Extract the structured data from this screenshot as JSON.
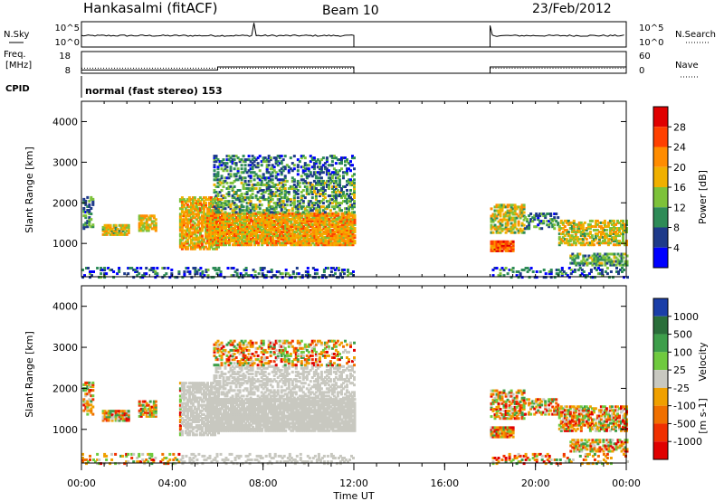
{
  "header": {
    "station": "Hankasalmi (fitACF)",
    "beam": "Beam 10",
    "date": "23/Feb/2012"
  },
  "nsky_panel": {
    "left_label": "N.Sky",
    "right_label": "N.Search",
    "left_ticks": [
      "10^5",
      "10^0"
    ],
    "right_ticks": [
      "10^5",
      "10^0"
    ]
  },
  "freq_panel": {
    "left_label_top": "Freq.",
    "left_label_bottom": "[MHz]",
    "right_label": "Nave",
    "left_ticks": [
      "18",
      "8"
    ],
    "right_ticks": [
      "60",
      "0"
    ]
  },
  "cpid": {
    "label": "CPID",
    "mode": "normal (fast stereo) 153"
  },
  "time_axis": {
    "title": "Time UT",
    "range_hours": [
      0,
      24
    ],
    "tick_labels": [
      "00:00",
      "04:00",
      "08:00",
      "12:00",
      "16:00",
      "20:00",
      "00:00"
    ],
    "tick_hours": [
      0,
      4,
      8,
      12,
      16,
      20,
      24
    ]
  },
  "chart_data": [
    {
      "type": "heatmap",
      "quantity": "Power",
      "ylabel": "Slant Range [km]",
      "ylim": [
        180,
        4500
      ],
      "yticks": [
        "1000",
        "2000",
        "3000",
        "4000"
      ],
      "ytick_values": [
        1000,
        2000,
        3000,
        4000
      ],
      "colorbar_title": "Power [dB]",
      "colorbar_labels": [
        "28",
        "24",
        "20",
        "16",
        "12",
        "8",
        "4"
      ],
      "colorbar_colors": [
        "#e00000",
        "#ff4000",
        "#ff8c00",
        "#f0b000",
        "#7dc23a",
        "#2e8b57",
        "#1e3a8a",
        "#0000ff"
      ],
      "data_gaps_hours": [
        [
          12.0,
          18.0
        ]
      ]
    },
    {
      "type": "heatmap",
      "quantity": "Velocity",
      "ylabel": "Slant Range [km]",
      "ylim": [
        180,
        4500
      ],
      "yticks": [
        "1000",
        "2000",
        "3000",
        "4000"
      ],
      "ytick_values": [
        1000,
        2000,
        3000,
        4000
      ],
      "colorbar_title": "Velocity",
      "colorbar_unit": "[m s-1]",
      "colorbar_labels": [
        "1000",
        "500",
        "100",
        "25",
        "-25",
        "-100",
        "-500",
        "-1000"
      ],
      "colorbar_colors": [
        "#1a3ea8",
        "#2a6e3a",
        "#3d9e4a",
        "#6fca3e",
        "#c8c8c0",
        "#f0a000",
        "#f07000",
        "#f03000",
        "#e00000"
      ],
      "data_gaps_hours": [
        [
          12.0,
          18.0
        ]
      ]
    }
  ]
}
